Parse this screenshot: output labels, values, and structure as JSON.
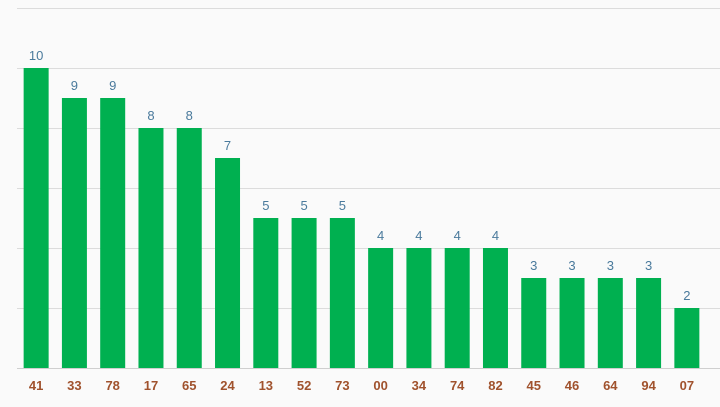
{
  "chart_data": {
    "type": "bar",
    "categories": [
      "41",
      "33",
      "78",
      "17",
      "65",
      "24",
      "13",
      "52",
      "73",
      "00",
      "34",
      "74",
      "82",
      "45",
      "46",
      "64",
      "94",
      "07"
    ],
    "values": [
      10,
      9,
      9,
      8,
      8,
      7,
      5,
      5,
      5,
      4,
      4,
      4,
      4,
      3,
      3,
      3,
      3,
      2
    ],
    "title": "",
    "xlabel": "",
    "ylabel": "",
    "ylim": [
      0,
      12
    ],
    "grid": true,
    "legend": "none",
    "colors": {
      "bar": "#00b050",
      "value_label": "#4a7a9c",
      "category_label": "#a0522d",
      "grid": "#dcdcdc"
    }
  }
}
